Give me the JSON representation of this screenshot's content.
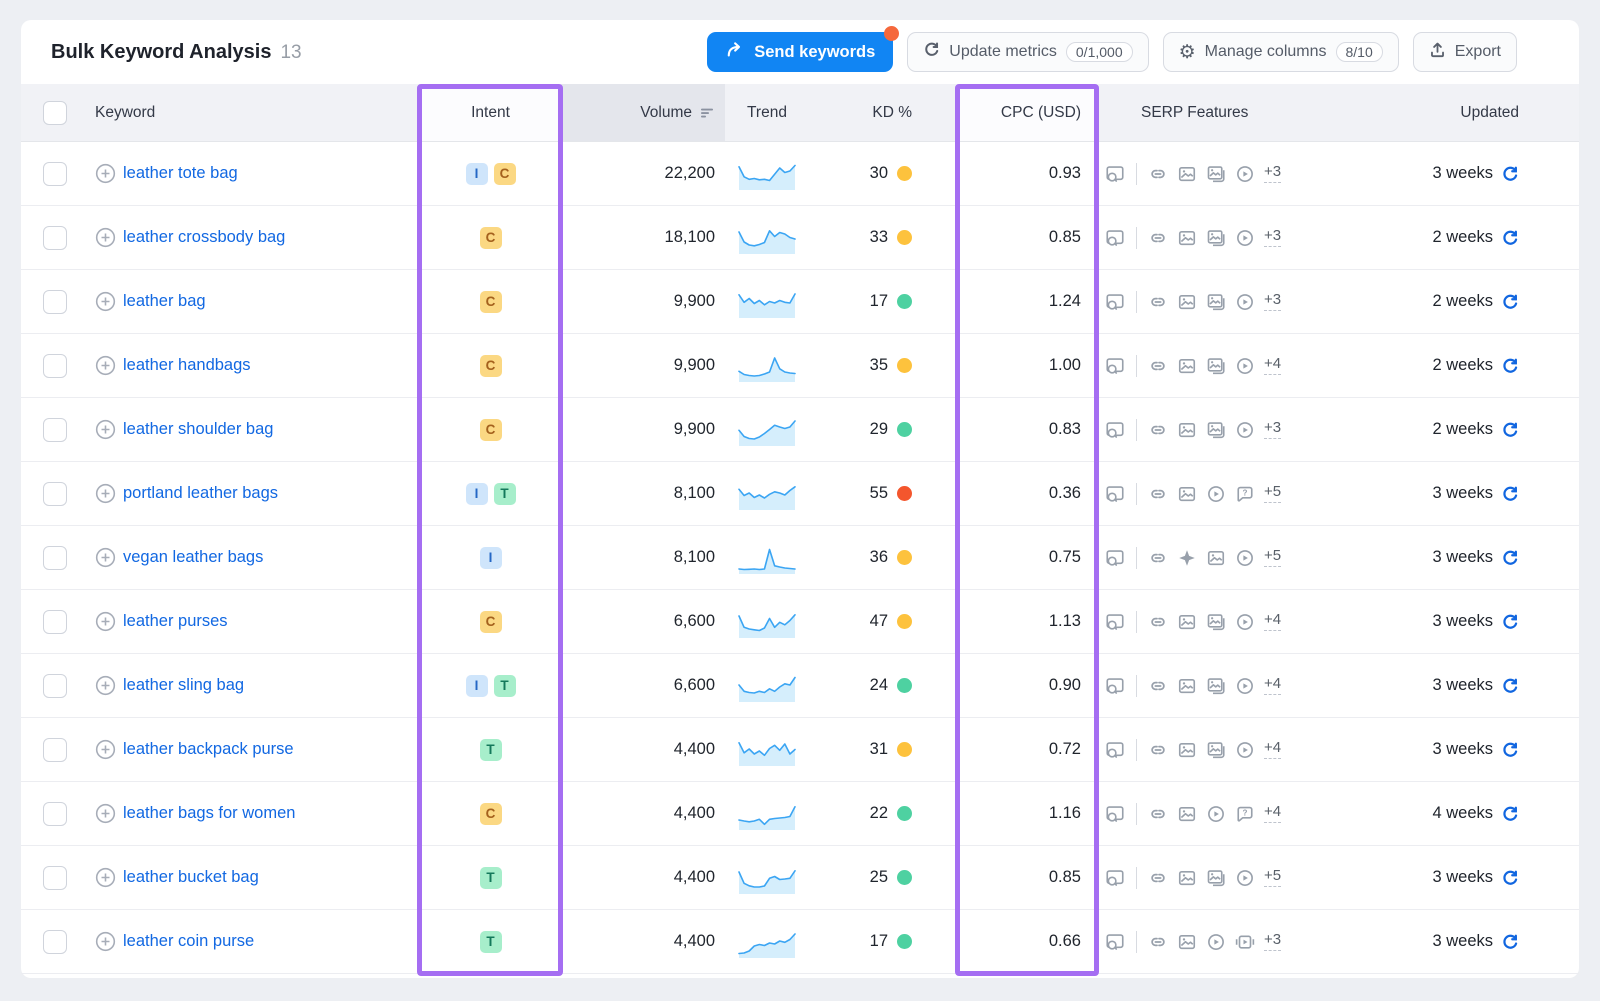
{
  "header": {
    "title": "Bulk Keyword Analysis",
    "count": "13",
    "send_keywords_label": "Send keywords",
    "update_metrics_label": "Update metrics",
    "update_metrics_badge": "0/1,000",
    "manage_columns_label": "Manage columns",
    "manage_columns_badge": "8/10",
    "export_label": "Export"
  },
  "colors": {
    "primary_blue": "#1185f3",
    "link_blue": "#1268e2",
    "refresh_blue": "#1166e0",
    "notification_orange": "#f5683c",
    "highlight_purple": "#a56ef2",
    "kd": {
      "green": "#4ed1a1",
      "yellow": "#fdc23d",
      "red": "#f4562d"
    },
    "intent": {
      "I": {
        "bg": "#cfe5fb",
        "fg": "#2467c5"
      },
      "C": {
        "bg": "#fbd883",
        "fg": "#a4611d"
      },
      "T": {
        "bg": "#a7eecb",
        "fg": "#14795b"
      }
    },
    "sparkline_line": "#3ba5f3",
    "sparkline_fill": "#d5eefc"
  },
  "table": {
    "columns": {
      "keyword": "Keyword",
      "intent": "Intent",
      "volume": "Volume",
      "trend": "Trend",
      "kd": "KD %",
      "cpc": "CPC (USD)",
      "serp": "SERP Features",
      "updated": "Updated"
    },
    "rows": [
      {
        "keyword": "leather tote bag",
        "intents": [
          "I",
          "C"
        ],
        "volume": "22,200",
        "trend": [
          85,
          45,
          35,
          38,
          33,
          35,
          30,
          55,
          80,
          62,
          68,
          90
        ],
        "kd": "30",
        "kd_level": "yellow",
        "cpc": "0.93",
        "serp": [
          "serp-preview",
          "link",
          "image",
          "image-pack",
          "video"
        ],
        "serp_more": "+3",
        "updated": "3 weeks"
      },
      {
        "keyword": "leather crossbody bag",
        "intents": [
          "C"
        ],
        "volume": "18,100",
        "trend": [
          80,
          40,
          28,
          25,
          30,
          38,
          85,
          62,
          78,
          72,
          58,
          52
        ],
        "kd": "33",
        "kd_level": "yellow",
        "cpc": "0.85",
        "serp": [
          "serp-preview",
          "link",
          "image",
          "image-pack",
          "video"
        ],
        "serp_more": "+3",
        "updated": "2 weeks"
      },
      {
        "keyword": "leather bag",
        "intents": [
          "C"
        ],
        "volume": "9,900",
        "trend": [
          85,
          55,
          70,
          50,
          62,
          45,
          58,
          52,
          62,
          55,
          52,
          88
        ],
        "kd": "17",
        "kd_level": "green",
        "cpc": "1.24",
        "serp": [
          "serp-preview",
          "link",
          "image",
          "image-pack",
          "video"
        ],
        "serp_more": "+3",
        "updated": "2 weeks"
      },
      {
        "keyword": "leather handbags",
        "intents": [
          "C"
        ],
        "volume": "9,900",
        "trend": [
          35,
          22,
          18,
          16,
          18,
          24,
          32,
          88,
          45,
          32,
          28,
          26
        ],
        "kd": "35",
        "kd_level": "yellow",
        "cpc": "1.00",
        "serp": [
          "serp-preview",
          "link",
          "image",
          "image-pack",
          "video"
        ],
        "serp_more": "+4",
        "updated": "2 weeks"
      },
      {
        "keyword": "leather shoulder bag",
        "intents": [
          "C"
        ],
        "volume": "9,900",
        "trend": [
          55,
          30,
          22,
          20,
          28,
          42,
          58,
          75,
          68,
          62,
          68,
          92
        ],
        "kd": "29",
        "kd_level": "green",
        "cpc": "0.83",
        "serp": [
          "serp-preview",
          "link",
          "image",
          "image-pack",
          "video"
        ],
        "serp_more": "+3",
        "updated": "2 weeks"
      },
      {
        "keyword": "portland leather bags",
        "intents": [
          "I",
          "T"
        ],
        "volume": "8,100",
        "trend": [
          75,
          50,
          60,
          42,
          52,
          40,
          55,
          65,
          60,
          52,
          70,
          85
        ],
        "kd": "55",
        "kd_level": "red",
        "cpc": "0.36",
        "serp": [
          "serp-preview",
          "link",
          "image",
          "video",
          "faq"
        ],
        "serp_more": "+5",
        "updated": "3 weeks"
      },
      {
        "keyword": "vegan leather bags",
        "intents": [
          "I"
        ],
        "volume": "8,100",
        "trend": [
          12,
          10,
          11,
          12,
          10,
          12,
          90,
          25,
          20,
          16,
          14,
          12
        ],
        "kd": "36",
        "kd_level": "yellow",
        "cpc": "0.75",
        "serp": [
          "serp-preview",
          "link",
          "sparkle",
          "image",
          "video"
        ],
        "serp_more": "+5",
        "updated": "3 weeks"
      },
      {
        "keyword": "leather purses",
        "intents": [
          "C"
        ],
        "volume": "6,600",
        "trend": [
          80,
          35,
          28,
          25,
          22,
          32,
          70,
          35,
          55,
          45,
          62,
          85
        ],
        "kd": "47",
        "kd_level": "yellow",
        "cpc": "1.13",
        "serp": [
          "serp-preview",
          "link",
          "image",
          "image-pack",
          "video"
        ],
        "serp_more": "+4",
        "updated": "3 weeks"
      },
      {
        "keyword": "leather sling bag",
        "intents": [
          "I",
          "T"
        ],
        "volume": "6,600",
        "trend": [
          60,
          35,
          30,
          28,
          35,
          30,
          45,
          35,
          52,
          65,
          60,
          90
        ],
        "kd": "24",
        "kd_level": "green",
        "cpc": "0.90",
        "serp": [
          "serp-preview",
          "link",
          "image",
          "image-pack",
          "video"
        ],
        "serp_more": "+4",
        "updated": "3 weeks"
      },
      {
        "keyword": "leather backpack purse",
        "intents": [
          "T"
        ],
        "volume": "4,400",
        "trend": [
          85,
          45,
          60,
          40,
          52,
          35,
          62,
          75,
          55,
          80,
          40,
          58
        ],
        "kd": "31",
        "kd_level": "yellow",
        "cpc": "0.72",
        "serp": [
          "serp-preview",
          "link",
          "image",
          "image-pack",
          "video"
        ],
        "serp_more": "+4",
        "updated": "3 weeks"
      },
      {
        "keyword": "leather bags for women",
        "intents": [
          "C"
        ],
        "volume": "4,400",
        "trend": [
          32,
          28,
          25,
          28,
          35,
          15,
          35,
          38,
          40,
          42,
          46,
          85
        ],
        "kd": "22",
        "kd_level": "green",
        "cpc": "1.16",
        "serp": [
          "serp-preview",
          "link",
          "image",
          "video",
          "faq"
        ],
        "serp_more": "+4",
        "updated": "4 weeks"
      },
      {
        "keyword": "leather bucket bag",
        "intents": [
          "T"
        ],
        "volume": "4,400",
        "trend": [
          80,
          35,
          25,
          20,
          20,
          24,
          55,
          62,
          50,
          52,
          55,
          85
        ],
        "kd": "25",
        "kd_level": "green",
        "cpc": "0.85",
        "serp": [
          "serp-preview",
          "link",
          "image",
          "image-pack",
          "video"
        ],
        "serp_more": "+5",
        "updated": "3 weeks"
      },
      {
        "keyword": "leather coin purse",
        "intents": [
          "T"
        ],
        "volume": "4,400",
        "trend": [
          10,
          12,
          20,
          40,
          46,
          42,
          52,
          48,
          60,
          55,
          66,
          88
        ],
        "kd": "17",
        "kd_level": "green",
        "cpc": "0.66",
        "serp": [
          "serp-preview",
          "link",
          "image",
          "video",
          "video-carousel"
        ],
        "serp_more": "+3",
        "updated": "3 weeks"
      }
    ]
  }
}
